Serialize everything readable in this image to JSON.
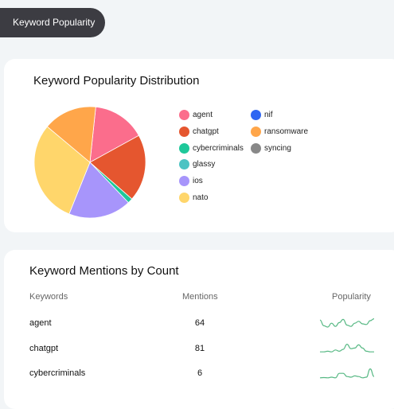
{
  "tab": {
    "label": "Keyword Popularity"
  },
  "distribution": {
    "title": "Keyword Popularity Distribution",
    "chart_data": {
      "type": "pie",
      "title": "Keyword Popularity Distribution",
      "legend_position": "right",
      "labels": [
        "agent",
        "chatgpt",
        "cybercriminals",
        "glassy",
        "ios",
        "nato",
        "nif",
        "ransomware",
        "syncing"
      ],
      "values": [
        64,
        81,
        6,
        0,
        76,
        125,
        0,
        65,
        0
      ],
      "colors": [
        "#fb6d8c",
        "#e5562f",
        "#1ec89a",
        "#4cc3c3",
        "#a795fb",
        "#ffd66b",
        "#2f66f2",
        "#ffa64a",
        "#888888"
      ]
    }
  },
  "mentions": {
    "title": "Keyword Mentions by Count",
    "columns": {
      "keyword": "Keywords",
      "mentions": "Mentions",
      "popularity": "Popularity"
    },
    "rows": [
      {
        "keyword": "agent",
        "mentions": "64",
        "trend": [
          0.8,
          0.35,
          0.25,
          0.55,
          0.3,
          0.6,
          0.85,
          0.4,
          0.3,
          0.55,
          0.7,
          0.5,
          0.45,
          0.75,
          0.9
        ],
        "color": "#56b883"
      },
      {
        "keyword": "chatgpt",
        "mentions": "81",
        "trend": [
          0.3,
          0.3,
          0.35,
          0.3,
          0.45,
          0.35,
          0.5,
          0.9,
          0.55,
          0.6,
          0.85,
          0.6,
          0.35,
          0.3,
          0.3
        ],
        "color": "#56b883"
      },
      {
        "keyword": "cybercriminals",
        "mentions": "6",
        "trend": [
          0.2,
          0.22,
          0.2,
          0.25,
          0.2,
          0.55,
          0.55,
          0.3,
          0.25,
          0.35,
          0.3,
          0.2,
          0.25,
          0.9,
          0.3
        ],
        "color": "#56b883"
      }
    ]
  }
}
